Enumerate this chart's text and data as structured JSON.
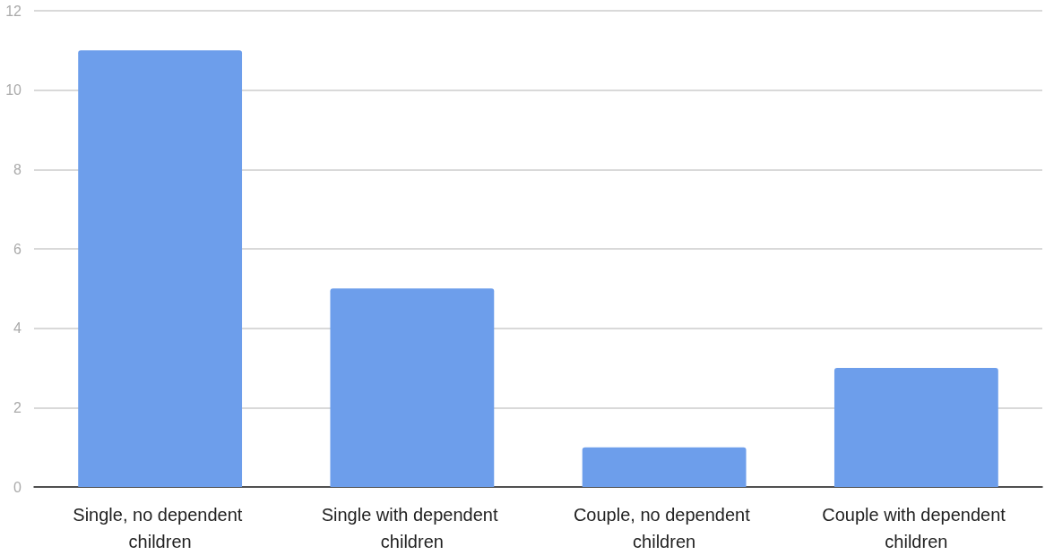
{
  "chart_data": {
    "type": "bar",
    "categories": [
      "Single, no dependent children",
      "Single with dependent children",
      "Couple, no dependent children",
      "Couple with dependent children"
    ],
    "values": [
      11,
      5,
      1,
      3
    ],
    "color": "#6d9eeb",
    "ylim": [
      0,
      12
    ],
    "yticks": [
      0,
      2,
      4,
      6,
      8,
      10,
      12
    ],
    "grid": "y"
  }
}
